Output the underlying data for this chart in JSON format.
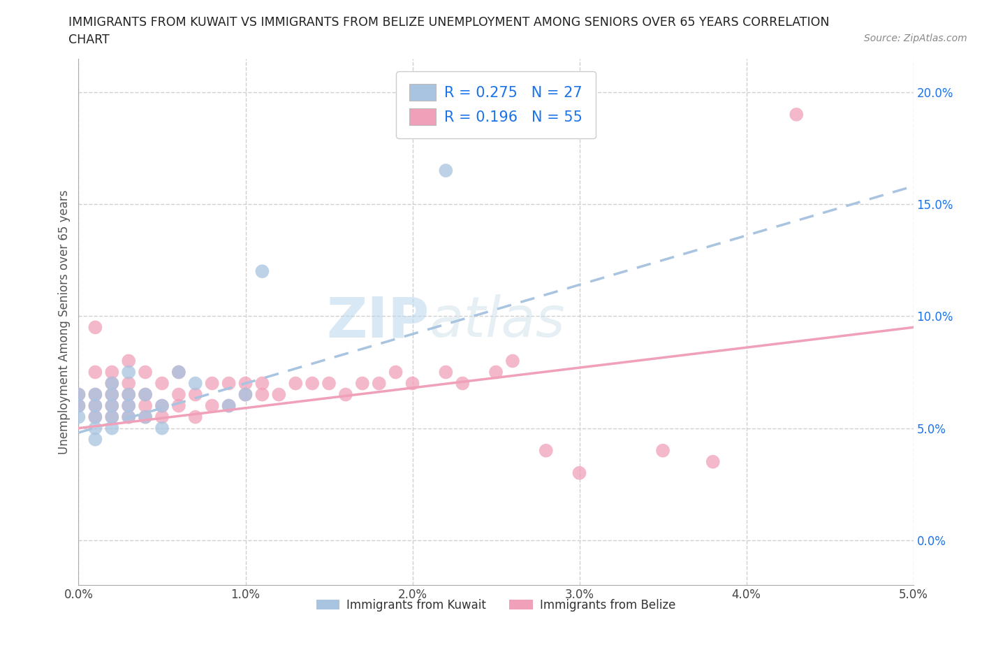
{
  "title_line1": "IMMIGRANTS FROM KUWAIT VS IMMIGRANTS FROM BELIZE UNEMPLOYMENT AMONG SENIORS OVER 65 YEARS CORRELATION",
  "title_line2": "CHART",
  "source_text": "Source: ZipAtlas.com",
  "ylabel": "Unemployment Among Seniors over 65 years",
  "xlim": [
    0.0,
    0.05
  ],
  "ylim": [
    -0.02,
    0.215
  ],
  "xticks": [
    0.0,
    0.01,
    0.02,
    0.03,
    0.04,
    0.05
  ],
  "yticks": [
    0.0,
    0.05,
    0.1,
    0.15,
    0.2
  ],
  "xtick_labels": [
    "0.0%",
    "1.0%",
    "2.0%",
    "3.0%",
    "4.0%",
    "5.0%"
  ],
  "ytick_labels": [
    "0.0%",
    "5.0%",
    "10.0%",
    "15.0%",
    "20.0%"
  ],
  "watermark_zip": "ZIP",
  "watermark_atlas": "atlas",
  "kuwait_color": "#a8c4e0",
  "belize_color": "#f0a0b8",
  "kuwait_R": 0.275,
  "kuwait_N": 27,
  "belize_R": 0.196,
  "belize_N": 55,
  "kuwait_scatter_x": [
    0.0,
    0.0,
    0.0,
    0.001,
    0.001,
    0.001,
    0.001,
    0.001,
    0.002,
    0.002,
    0.002,
    0.002,
    0.002,
    0.003,
    0.003,
    0.003,
    0.003,
    0.004,
    0.004,
    0.005,
    0.005,
    0.006,
    0.007,
    0.009,
    0.01,
    0.011,
    0.022
  ],
  "kuwait_scatter_y": [
    0.055,
    0.06,
    0.065,
    0.045,
    0.05,
    0.055,
    0.06,
    0.065,
    0.05,
    0.055,
    0.06,
    0.065,
    0.07,
    0.055,
    0.06,
    0.065,
    0.075,
    0.055,
    0.065,
    0.05,
    0.06,
    0.075,
    0.07,
    0.06,
    0.065,
    0.12,
    0.165
  ],
  "belize_scatter_x": [
    0.0,
    0.0,
    0.001,
    0.001,
    0.001,
    0.001,
    0.001,
    0.002,
    0.002,
    0.002,
    0.002,
    0.002,
    0.003,
    0.003,
    0.003,
    0.003,
    0.003,
    0.004,
    0.004,
    0.004,
    0.004,
    0.005,
    0.005,
    0.005,
    0.006,
    0.006,
    0.006,
    0.007,
    0.007,
    0.008,
    0.008,
    0.009,
    0.009,
    0.01,
    0.01,
    0.011,
    0.011,
    0.012,
    0.013,
    0.014,
    0.015,
    0.016,
    0.017,
    0.018,
    0.019,
    0.02,
    0.022,
    0.023,
    0.025,
    0.026,
    0.028,
    0.03,
    0.035,
    0.038,
    0.043
  ],
  "belize_scatter_y": [
    0.06,
    0.065,
    0.055,
    0.06,
    0.065,
    0.075,
    0.095,
    0.055,
    0.06,
    0.065,
    0.07,
    0.075,
    0.055,
    0.06,
    0.065,
    0.07,
    0.08,
    0.055,
    0.06,
    0.065,
    0.075,
    0.055,
    0.06,
    0.07,
    0.06,
    0.065,
    0.075,
    0.055,
    0.065,
    0.06,
    0.07,
    0.06,
    0.07,
    0.065,
    0.07,
    0.065,
    0.07,
    0.065,
    0.07,
    0.07,
    0.07,
    0.065,
    0.07,
    0.07,
    0.075,
    0.07,
    0.075,
    0.07,
    0.075,
    0.08,
    0.04,
    0.03,
    0.04,
    0.035,
    0.19
  ],
  "kuwait_trend_x": [
    0.0,
    0.05
  ],
  "kuwait_trend_y": [
    0.048,
    0.158
  ],
  "belize_trend_x": [
    0.0,
    0.05
  ],
  "belize_trend_y": [
    0.05,
    0.095
  ],
  "grid_color": "#d0d0d0",
  "background_color": "#ffffff",
  "legend_color": "#1a73e8"
}
